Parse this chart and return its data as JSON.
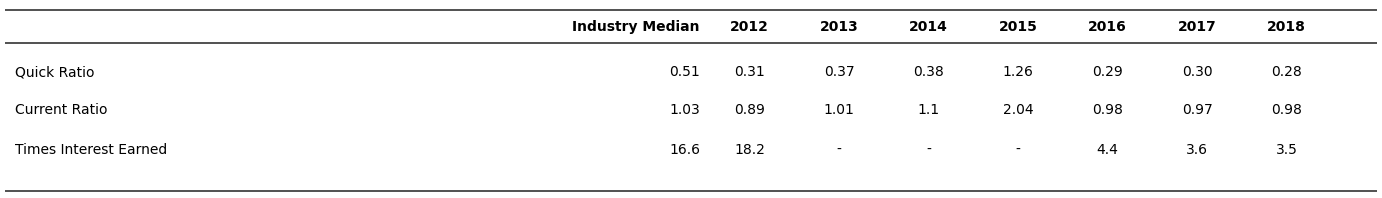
{
  "columns": [
    "",
    "Industry Median",
    "2012",
    "2013",
    "2014",
    "2015",
    "2016",
    "2017",
    "2018"
  ],
  "rows": [
    [
      "Quick Ratio",
      "0.51",
      "0.31",
      "0.37",
      "0.38",
      "1.26",
      "0.29",
      "0.30",
      "0.28"
    ],
    [
      "Current Ratio",
      "1.03",
      "0.89",
      "1.01",
      "1.1",
      "2.04",
      "0.98",
      "0.97",
      "0.98"
    ],
    [
      "Times Interest Earned",
      "16.6",
      "18.2",
      "-",
      "-",
      "-",
      "4.4",
      "3.6",
      "3.5"
    ]
  ],
  "background_color": "#ffffff",
  "header_fontsize": 10,
  "cell_fontsize": 10,
  "line_color": "#333333",
  "text_color": "#000000",
  "fig_width": 13.82,
  "fig_height": 1.98,
  "dpi": 100
}
